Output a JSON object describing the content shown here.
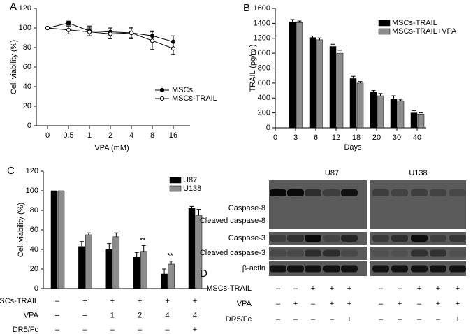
{
  "chart_data": [
    {
      "type": "line",
      "panel": "A",
      "y_label": "Cell viability (%)",
      "x_label": "VPA (mM)",
      "categories": [
        "0",
        "0.5",
        "1",
        "2",
        "4",
        "8",
        "16"
      ],
      "ylim": [
        0,
        120
      ],
      "yticks": [
        0,
        20,
        40,
        60,
        80,
        100,
        120
      ],
      "series": [
        {
          "name": "MSCs",
          "color": "#000000",
          "marker": "filled",
          "values": [
            100,
            105,
            97,
            96,
            95,
            92,
            86
          ],
          "errors": [
            1,
            2,
            5,
            4,
            5,
            5,
            6
          ]
        },
        {
          "name": "MSCs-TRAIL",
          "color": "#000000",
          "marker": "open",
          "values": [
            100,
            98,
            96,
            94,
            95,
            87,
            79
          ],
          "errors": [
            1,
            4,
            4,
            5,
            6,
            9,
            6
          ]
        }
      ]
    },
    {
      "type": "bar",
      "panel": "B",
      "y_label": "TRAIL (pg/ml)",
      "x_label": "Days",
      "categories": [
        "0",
        "3",
        "6",
        "12",
        "18",
        "20",
        "30",
        "40"
      ],
      "ylim": [
        0,
        1600
      ],
      "yticks": [
        0,
        200,
        400,
        600,
        800,
        1000,
        1200,
        1400,
        1600
      ],
      "series": [
        {
          "name": "MSCs-TRAIL",
          "color": "#000000",
          "values": [
            null,
            1420,
            1210,
            1090,
            660,
            480,
            390,
            200
          ],
          "errors": [
            null,
            30,
            20,
            30,
            30,
            20,
            40,
            30
          ]
        },
        {
          "name": "MSCs-TRAIL+VPA",
          "color": "#8c8c8c",
          "values": [
            null,
            1410,
            1180,
            1000,
            600,
            430,
            360,
            185
          ],
          "errors": [
            null,
            20,
            25,
            40,
            20,
            30,
            15,
            15
          ]
        }
      ]
    },
    {
      "type": "bar",
      "panel": "C",
      "y_label": "Cell viability (%)",
      "ylim": [
        0,
        120
      ],
      "yticks": [
        0,
        20,
        40,
        60,
        80,
        100,
        120
      ],
      "series": [
        {
          "name": "U87",
          "color": "#000000",
          "values": [
            100,
            43,
            40,
            32,
            15,
            82
          ],
          "errors": [
            0,
            5,
            6,
            5,
            5,
            2
          ]
        },
        {
          "name": "U138",
          "color": "#8c8c8c",
          "values": [
            100,
            55,
            53,
            38,
            25,
            75
          ],
          "errors": [
            0,
            2,
            4,
            6,
            3,
            6
          ]
        }
      ],
      "annotations": [
        null,
        null,
        null,
        "**",
        "**",
        null
      ],
      "table": [
        {
          "label": "MSCs-TRAIL",
          "cells": [
            "–",
            "+",
            "+",
            "+",
            "+",
            "+"
          ]
        },
        {
          "label": "VPA",
          "cells": [
            "–",
            "–",
            "1",
            "2",
            "4",
            "4"
          ]
        },
        {
          "label": "DR5/Fc",
          "cells": [
            "–",
            "–",
            "–",
            "–",
            "–",
            "+"
          ]
        }
      ]
    }
  ],
  "blot": {
    "panel": "D",
    "cell_lines": [
      "U87",
      "U138"
    ],
    "bands": [
      "Caspase-8",
      "Cleaved caspase-8",
      "Caspase-3",
      "Cleaved caspase-3",
      "β-actin"
    ],
    "conditions": [
      {
        "label": "MSCs-TRAIL",
        "u87": [
          "–",
          "–",
          "+",
          "+",
          "+"
        ],
        "u138": [
          "–",
          "–",
          "+",
          "+",
          "+"
        ]
      },
      {
        "label": "VPA",
        "u87": [
          "–",
          "+",
          "–",
          "+",
          "+"
        ],
        "u138": [
          "–",
          "+",
          "–",
          "+",
          "+"
        ]
      },
      {
        "label": "DR5/Fc",
        "u87": [
          "–",
          "–",
          "–",
          "–",
          "+"
        ],
        "u138": [
          "–",
          "–",
          "–",
          "–",
          "+"
        ]
      }
    ]
  }
}
